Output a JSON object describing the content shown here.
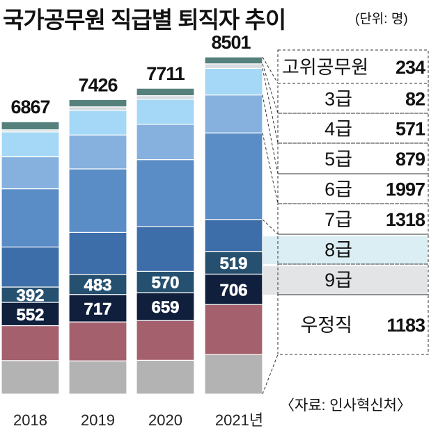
{
  "title": "국가공무원 직급별 퇴직자 추이",
  "unit": "(단위: 명)",
  "source": "〈자료: 인사혁신처〉",
  "chart_data": {
    "type": "bar",
    "stacked": true,
    "categories": [
      "2018",
      "2019",
      "2020",
      "2021년"
    ],
    "totals": [
      6867,
      7426,
      7711,
      8501
    ],
    "series": [
      {
        "name": "우정직",
        "color": "#b3b3b3",
        "values": [
          null,
          null,
          null,
          null
        ]
      },
      {
        "name": "",
        "color": "#a4616d",
        "values": [
          null,
          null,
          null,
          null
        ]
      },
      {
        "name": "9급",
        "color": "#0f1f3c",
        "values": [
          552,
          717,
          659,
          706
        ]
      },
      {
        "name": "8급",
        "color": "#26506f",
        "values": [
          392,
          483,
          570,
          519
        ]
      },
      {
        "name": "7급",
        "color": "#3d6ea9",
        "values": [
          null,
          null,
          null,
          1318
        ]
      },
      {
        "name": "6급",
        "color": "#5a8cc6",
        "values": [
          null,
          null,
          null,
          1997
        ]
      },
      {
        "name": "5급",
        "color": "#86b0de",
        "values": [
          null,
          null,
          null,
          879
        ]
      },
      {
        "name": "4급",
        "color": "#a4d8f6",
        "values": [
          null,
          null,
          null,
          571
        ]
      },
      {
        "name": "3급",
        "color": "#d6dbe0",
        "values": [
          null,
          null,
          null,
          82
        ]
      },
      {
        "name": "고위공무원",
        "color": "#55807c",
        "values": [
          null,
          null,
          null,
          234
        ]
      }
    ],
    "legend": [
      {
        "label": "고위공무원",
        "value": "234"
      },
      {
        "label": "3급",
        "value": "82"
      },
      {
        "label": "4급",
        "value": "571"
      },
      {
        "label": "5급",
        "value": "879"
      },
      {
        "label": "6급",
        "value": "1997"
      },
      {
        "label": "7급",
        "value": "1318"
      },
      {
        "label": "8급",
        "value": ""
      },
      {
        "label": "9급",
        "value": ""
      },
      {
        "label": "우정직",
        "value": "1183"
      }
    ],
    "legend_highlights": {
      "8급": "#dbeef3",
      "9급": "#e3e4e6"
    }
  }
}
